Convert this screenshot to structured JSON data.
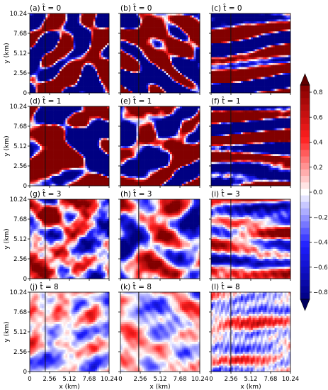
{
  "chart_data": {
    "type": "heatmap",
    "layout": "4x3 grid of 2D field snapshots",
    "xlabel": "x (km)",
    "ylabel": "y (km)",
    "x_ticks": [
      "0",
      "2.56",
      "5.12",
      "7.68",
      "10.24"
    ],
    "y_ticks": [
      "0",
      "2.56",
      "5.12",
      "7.68",
      "10.24"
    ],
    "panels": [
      {
        "label": "(a) t̂ = 0",
        "time": 0,
        "column": 1
      },
      {
        "label": "(b) t̂ = 0",
        "time": 0,
        "column": 2
      },
      {
        "label": "(c) t̂ = 0",
        "time": 0,
        "column": 3
      },
      {
        "label": "(d) t̂ = 1",
        "time": 1,
        "column": 1
      },
      {
        "label": "(e) t̂ = 1",
        "time": 1,
        "column": 2
      },
      {
        "label": "(f) t̂ = 1",
        "time": 1,
        "column": 3
      },
      {
        "label": "(g) t̂ = 3",
        "time": 3,
        "column": 1
      },
      {
        "label": "(h) t̂ = 3",
        "time": 3,
        "column": 2
      },
      {
        "label": "(i) t̂ = 3",
        "time": 3,
        "column": 3
      },
      {
        "label": "(j) t̂ = 8",
        "time": 8,
        "column": 1
      },
      {
        "label": "(k) t̂ = 8",
        "time": 8,
        "column": 2
      },
      {
        "label": "(l) t̂ = 8",
        "time": 8,
        "column": 3
      }
    ],
    "vertical_marker_x_km": 2.0,
    "colorbar": {
      "ticks": [
        "0.8",
        "0.6",
        "0.4",
        "0.2",
        "0.0",
        "−0.2",
        "−0.4",
        "−0.6",
        "−0.8"
      ],
      "range": [
        -0.8,
        0.8
      ],
      "colormap": "seismic (blue-white-red), extended both ends",
      "levels": 33
    },
    "colors": {
      "negative": "#1c1cd8",
      "positive": "#e01a1a",
      "zero": "#ffffff"
    }
  }
}
